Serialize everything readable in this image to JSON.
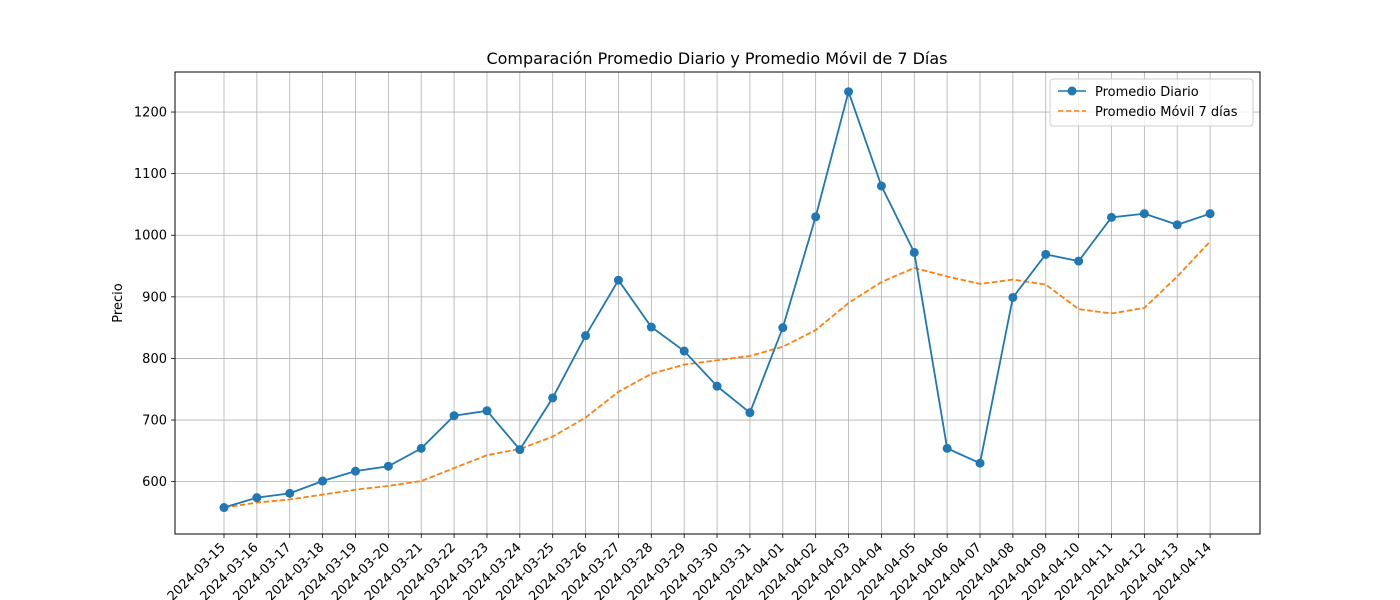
{
  "chart_data": {
    "type": "line",
    "title": "Comparación Promedio Diario y Promedio Móvil de 7 Días",
    "xlabel": "",
    "ylabel": "Precio",
    "ylim": [
      515,
      1265
    ],
    "yticks": [
      600,
      700,
      800,
      900,
      1000,
      1100,
      1200
    ],
    "grid": true,
    "legend_position": "top-right",
    "x": [
      "2024-03-15",
      "2024-03-16",
      "2024-03-17",
      "2024-03-18",
      "2024-03-19",
      "2024-03-20",
      "2024-03-21",
      "2024-03-22",
      "2024-03-23",
      "2024-03-24",
      "2024-03-25",
      "2024-03-26",
      "2024-03-27",
      "2024-03-28",
      "2024-03-29",
      "2024-03-30",
      "2024-03-31",
      "2024-04-01",
      "2024-04-02",
      "2024-04-03",
      "2024-04-04",
      "2024-04-05",
      "2024-04-06",
      "2024-04-07",
      "2024-04-08",
      "2024-04-09",
      "2024-04-10",
      "2024-04-11",
      "2024-04-12",
      "2024-04-13",
      "2024-04-14"
    ],
    "series": [
      {
        "name": "Promedio Diario",
        "color": "#1f77b4",
        "style": "solid-marker",
        "values": [
          558,
          574,
          581,
          601,
          617,
          625,
          654,
          707,
          715,
          652,
          736,
          837,
          927,
          851,
          812,
          755,
          712,
          850,
          1030,
          1233,
          1080,
          972,
          654,
          630,
          899,
          969,
          958,
          1029,
          1035,
          1017,
          1035
        ]
      },
      {
        "name": "Promedio Móvil 7 días",
        "color": "#ff7f0e",
        "style": "dashed",
        "values": [
          558,
          566,
          571,
          579,
          587,
          593,
          601,
          622,
          643,
          653,
          673,
          704,
          746,
          775,
          790,
          797,
          804,
          819,
          846,
          890,
          924,
          947,
          933,
          921,
          928,
          920,
          880,
          873,
          882,
          933,
          990
        ]
      }
    ]
  }
}
